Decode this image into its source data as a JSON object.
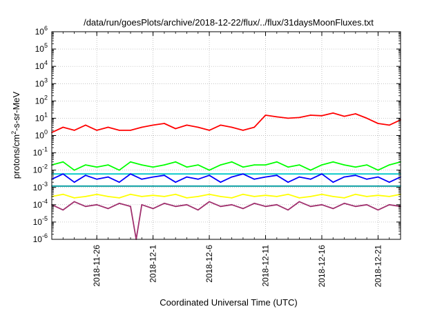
{
  "chart_data": {
    "type": "line",
    "title": "/data/run/goesPlots/archive/2018-12-22/flux/../flux/31daysMoonFluxes.txt",
    "xlabel": "Coordinated Universal Time (UTC)",
    "ylabel": {
      "base": "protons/cm",
      "sup": "2",
      "rest": "-s-sr-MeV"
    },
    "yscale": "log",
    "ylim": [
      1e-06,
      1000000.0
    ],
    "xlim": [
      "2018-11-22",
      "2018-12-23"
    ],
    "grid": true,
    "legend": "none",
    "xticks": [
      "2018-11-26",
      "2018-12-1",
      "2018-12-6",
      "2018-12-11",
      "2018-12-16",
      "2018-12-21"
    ],
    "xtick_positions": [
      4,
      9,
      14,
      19,
      24,
      29
    ],
    "yticks": [
      {
        "base": "10",
        "exp": "-6"
      },
      {
        "base": "10",
        "exp": "-5"
      },
      {
        "base": "10",
        "exp": "-4"
      },
      {
        "base": "10",
        "exp": "-3"
      },
      {
        "base": "10",
        "exp": "-2"
      },
      {
        "base": "10",
        "exp": "-1"
      },
      {
        "base": "10",
        "exp": "0"
      },
      {
        "base": "10",
        "exp": "1"
      },
      {
        "base": "10",
        "exp": "2"
      },
      {
        "base": "10",
        "exp": "3"
      },
      {
        "base": "10",
        "exp": "4"
      },
      {
        "base": "10",
        "exp": "5"
      },
      {
        "base": "10",
        "exp": "6"
      }
    ],
    "series": [
      {
        "color": "#ff0000",
        "x": [
          0,
          1,
          2,
          3,
          4,
          5,
          6,
          7,
          8,
          9,
          10,
          11,
          12,
          13,
          14,
          15,
          16,
          17,
          18,
          19,
          20,
          21,
          22,
          23,
          24,
          25,
          26,
          27,
          28,
          29,
          30,
          31
        ],
        "values": [
          1.5,
          3,
          2,
          4,
          2,
          3,
          2,
          2,
          3,
          4,
          5,
          2.5,
          4,
          3,
          2,
          4,
          3,
          2,
          3,
          15,
          12,
          10,
          11,
          15,
          14,
          20,
          13,
          18,
          10,
          5,
          4,
          8
        ]
      },
      {
        "color": "#00ff00",
        "x": [
          0,
          1,
          2,
          3,
          4,
          5,
          6,
          7,
          8,
          9,
          10,
          11,
          12,
          13,
          14,
          15,
          16,
          17,
          18,
          19,
          20,
          21,
          22,
          23,
          24,
          25,
          26,
          27,
          28,
          29,
          30,
          31
        ],
        "values": [
          0.02,
          0.03,
          0.01,
          0.02,
          0.015,
          0.02,
          0.01,
          0.03,
          0.02,
          0.015,
          0.02,
          0.03,
          0.015,
          0.02,
          0.01,
          0.02,
          0.03,
          0.015,
          0.02,
          0.02,
          0.03,
          0.015,
          0.02,
          0.01,
          0.02,
          0.03,
          0.02,
          0.015,
          0.02,
          0.01,
          0.02,
          0.03
        ]
      },
      {
        "color": "#00c8c8",
        "x": [
          0,
          31
        ],
        "values": [
          0.006,
          0.006
        ]
      },
      {
        "color": "#0000ff",
        "x": [
          0,
          1,
          2,
          3,
          4,
          5,
          6,
          7,
          8,
          9,
          10,
          11,
          12,
          13,
          14,
          15,
          16,
          17,
          18,
          19,
          20,
          21,
          22,
          23,
          24,
          25,
          26,
          27,
          28,
          29,
          30,
          31
        ],
        "values": [
          0.003,
          0.006,
          0.002,
          0.005,
          0.003,
          0.004,
          0.002,
          0.006,
          0.003,
          0.004,
          0.005,
          0.002,
          0.004,
          0.003,
          0.005,
          0.002,
          0.004,
          0.006,
          0.003,
          0.004,
          0.005,
          0.002,
          0.004,
          0.003,
          0.006,
          0.002,
          0.004,
          0.005,
          0.003,
          0.004,
          0.002,
          0.004
        ]
      },
      {
        "color": "#009ba0",
        "x": [
          0,
          31
        ],
        "values": [
          0.0012,
          0.0012
        ]
      },
      {
        "color": "#ffff00",
        "x": [
          0,
          1,
          2,
          3,
          4,
          5,
          6,
          7,
          8,
          9,
          10,
          11,
          12,
          13,
          14,
          15,
          16,
          17,
          18,
          19,
          20,
          21,
          22,
          23,
          24,
          25,
          26,
          27,
          28,
          29,
          30,
          31
        ],
        "values": [
          0.0003,
          0.0004,
          0.00025,
          0.0003,
          0.0004,
          0.0003,
          0.00025,
          0.0004,
          0.0003,
          0.00035,
          0.0003,
          0.0004,
          0.00025,
          0.0003,
          0.0004,
          0.0003,
          0.00025,
          0.0004,
          0.0003,
          0.00035,
          0.0003,
          0.0004,
          0.00025,
          0.0003,
          0.0004,
          0.0003,
          0.00025,
          0.0004,
          0.0003,
          0.00035,
          0.0003,
          0.0004
        ]
      },
      {
        "color": "#a0306e",
        "x": [
          0,
          1,
          2,
          3,
          4,
          5,
          6,
          7,
          7.5,
          8,
          9,
          10,
          11,
          12,
          13,
          14,
          15,
          16,
          17,
          18,
          19,
          20,
          21,
          22,
          23,
          24,
          25,
          26,
          27,
          28,
          29,
          30,
          31
        ],
        "values": [
          0.0001,
          5e-05,
          0.00015,
          8e-05,
          0.0001,
          6e-05,
          0.00012,
          8e-05,
          1e-06,
          0.0001,
          6e-05,
          0.00012,
          8e-05,
          0.0001,
          5e-05,
          0.00015,
          8e-05,
          0.0001,
          6e-05,
          0.00012,
          8e-05,
          0.0001,
          5e-05,
          0.00015,
          8e-05,
          0.0001,
          6e-05,
          0.00012,
          8e-05,
          0.0001,
          5e-05,
          0.0001,
          8e-05
        ]
      }
    ]
  }
}
